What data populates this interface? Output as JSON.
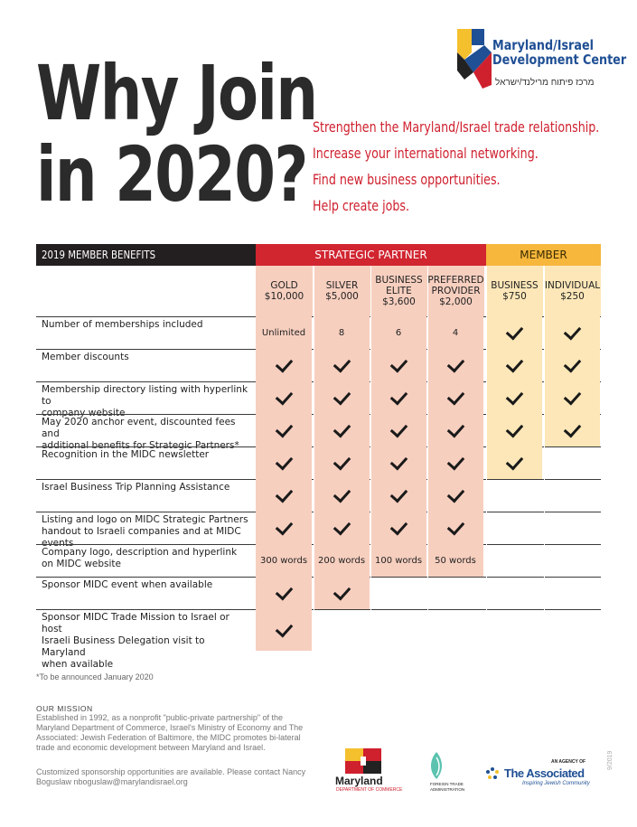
{
  "headline": {
    "line1": "Why Join",
    "line2": "in 2020?"
  },
  "reasons": [
    "Strengthen the Maryland/Israel trade relationship.",
    "Increase your international networking.",
    "Find new business opportunities.",
    "Help create jobs."
  ],
  "logo": {
    "line1": "Maryland/Israel",
    "line2": "Development Center",
    "hebrew": "מרכז פיתוח מרילנד/ישראל"
  },
  "table": {
    "benefits_label": "2019 MEMBER BENEFITS",
    "strategic_label": "STRATEGIC PARTNER",
    "member_label": "MEMBER",
    "columns": [
      "GOLD\n$10,000",
      "SILVER\n$5,000",
      "BUSINESS\nELITE\n$3,600",
      "PREFERRED\nPROVIDER\n$2,000",
      "BUSINESS\n$750",
      "INDIVIDUAL\n$250"
    ],
    "rows": [
      {
        "label": "Number of memberships included",
        "cells": [
          "Unlimited",
          "8",
          "6",
          "4",
          "check",
          "check"
        ]
      },
      {
        "label": "Member discounts",
        "cells": [
          "check",
          "check",
          "check",
          "check",
          "check",
          "check"
        ]
      },
      {
        "label": "Membership directory listing with hyperlink to\ncompany website",
        "cells": [
          "check",
          "check",
          "check",
          "check",
          "check",
          "check"
        ]
      },
      {
        "label": "May 2020 anchor event, discounted fees and\nadditional benefits for Strategic Partners*",
        "cells": [
          "check",
          "check",
          "check",
          "check",
          "check",
          "check"
        ]
      },
      {
        "label": "Recognition in the MIDC newsletter",
        "cells": [
          "check",
          "check",
          "check",
          "check",
          "check",
          ""
        ]
      },
      {
        "label": "Israel Business Trip Planning Assistance",
        "cells": [
          "check",
          "check",
          "check",
          "check",
          "",
          ""
        ]
      },
      {
        "label": "Listing and logo on MIDC Strategic Partners\nhandout to Israeli companies and at MIDC events",
        "cells": [
          "check",
          "check",
          "check",
          "check",
          "",
          ""
        ]
      },
      {
        "label": "Company logo, description and hyperlink\non MIDC website",
        "cells": [
          "300 words",
          "200 words",
          "100 words",
          "50 words",
          "",
          ""
        ]
      },
      {
        "label": "Sponsor MIDC event when available",
        "cells": [
          "check",
          "check",
          "",
          "",
          "",
          ""
        ]
      },
      {
        "label": "Sponsor MIDC Trade Mission to Israel or host\nIsraeli Business Delegation visit to Maryland\nwhen available",
        "cells": [
          "check",
          "",
          "",
          "",
          "",
          ""
        ]
      }
    ]
  },
  "footnote": "*To be announced January 2020",
  "mission": {
    "heading": "OUR MISSION",
    "text": "Established in 1992, as a nonprofit \"public-private partnership\" of the Maryland Department of Commerce, Israel's Ministry of Economy and The Associated: Jewish Federation of Baltimore, the MIDC promotes bi-lateral trade and economic development between Maryland and Israel."
  },
  "contact": "Customized sponsorship opportunities are available. Please contact Nancy Boguslaw nboguslaw@marylandisrael.org",
  "partners": {
    "maryland": "Maryland",
    "maryland_sub": "DEPARTMENT OF COMMERCE",
    "fta": "FOREIGN TRADE ADMINISTRATION",
    "agency_of": "AN AGENCY OF",
    "associated": "The Associated",
    "associated_sub": "Inspiring Jewish Community"
  },
  "date_code": "9/2019",
  "colors": {
    "red": "#cf202e",
    "pink": "#f7cfbf",
    "cream": "#fde7b8",
    "yellow": "#f6b73c",
    "blue": "#1f4f94"
  }
}
